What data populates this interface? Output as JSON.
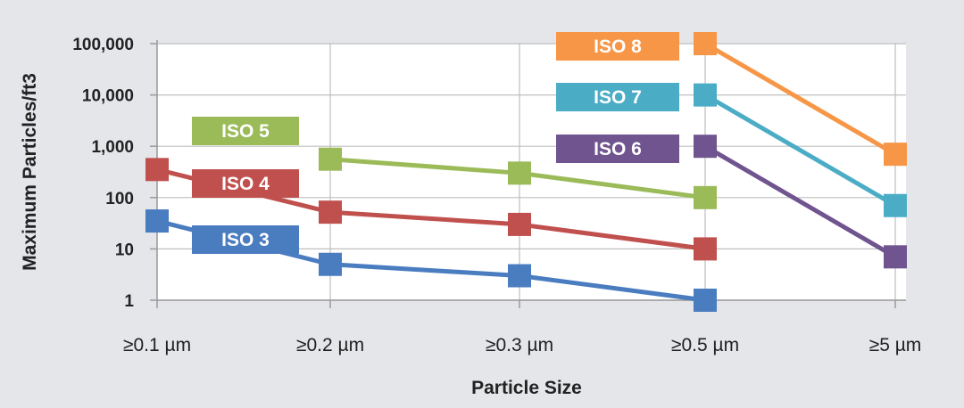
{
  "chart_data": {
    "type": "line",
    "title": "",
    "xlabel": "Particle Size",
    "ylabel": "Maximum Particles/ft3",
    "yscale": "log",
    "ylim": [
      1,
      100000
    ],
    "categories": [
      "≥0.1 µm",
      "≥0.2 µm",
      "≥0.3 µm",
      "≥0.5 µm",
      "≥5 µm"
    ],
    "yticks": [
      {
        "value": 1,
        "label": "1"
      },
      {
        "value": 10,
        "label": "10"
      },
      {
        "value": 100,
        "label": "100"
      },
      {
        "value": 1000,
        "label": "1,000"
      },
      {
        "value": 10000,
        "label": "10,000"
      },
      {
        "value": 100000,
        "label": "100,000"
      }
    ],
    "grid": true,
    "series": [
      {
        "name": "ISO 3",
        "color": "#4a7cc0",
        "values": [
          35,
          5,
          3,
          1,
          null
        ]
      },
      {
        "name": "ISO 4",
        "color": "#c0504d",
        "values": [
          352,
          52,
          30,
          10,
          null
        ]
      },
      {
        "name": "ISO 5",
        "color": "#9bbb59",
        "values": [
          null,
          560,
          300,
          100,
          null
        ]
      },
      {
        "name": "ISO 6",
        "color": "#6f548f",
        "values": [
          null,
          null,
          null,
          1000,
          7
        ]
      },
      {
        "name": "ISO 7",
        "color": "#4bacc6",
        "values": [
          null,
          null,
          null,
          10000,
          70
        ]
      },
      {
        "name": "ISO 8",
        "color": "#f79646",
        "values": [
          null,
          null,
          null,
          100000,
          700
        ]
      }
    ]
  }
}
